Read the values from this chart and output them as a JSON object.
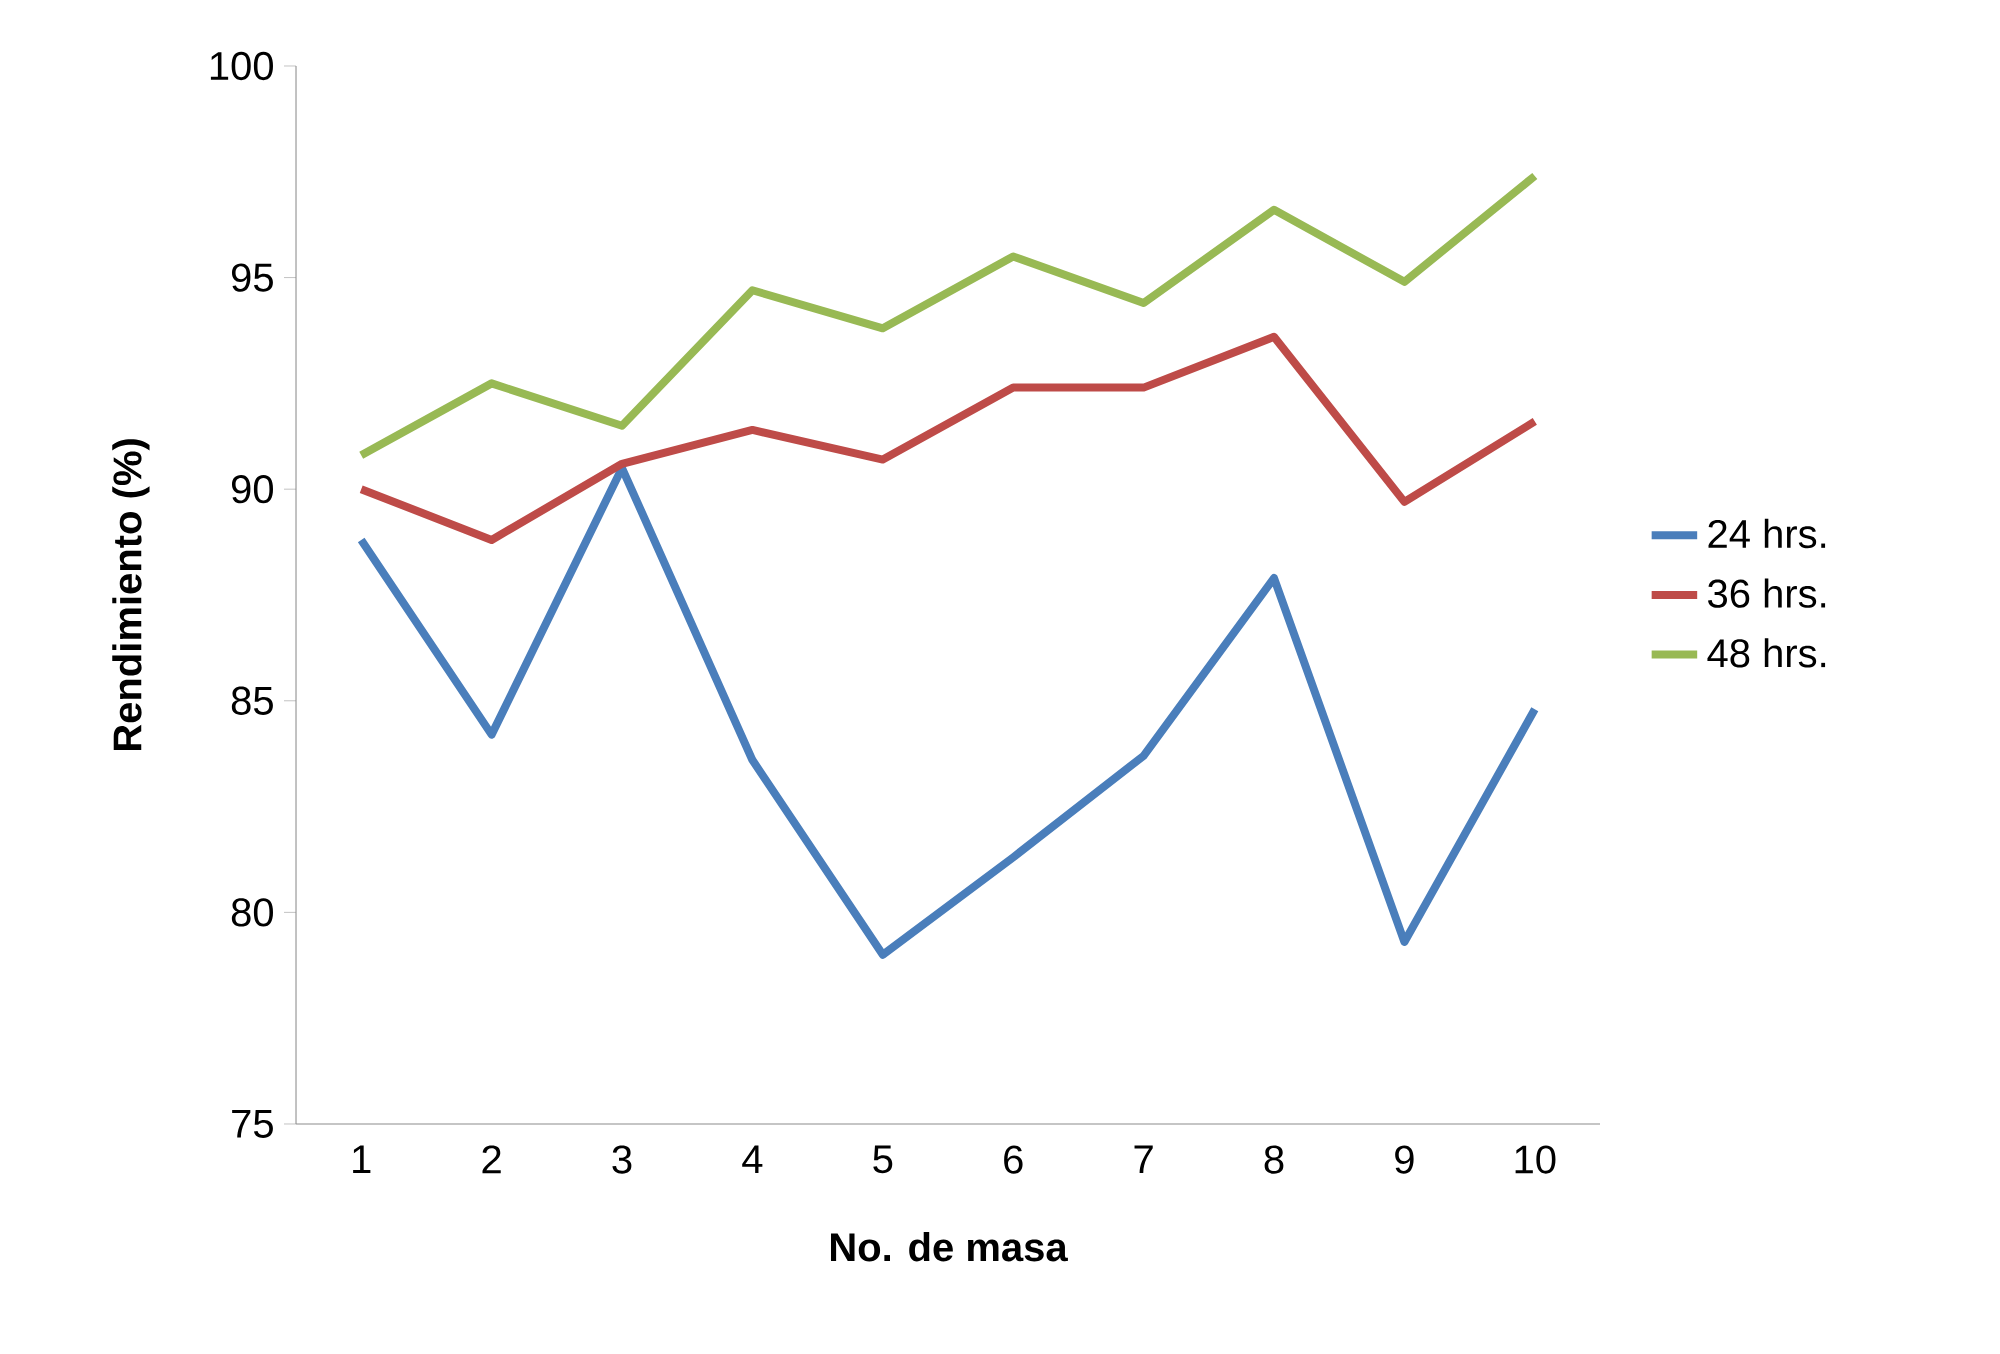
{
  "chart_data": {
    "type": "line",
    "xlabel": "No. de masa",
    "ylabel": "Rendimiento (%)",
    "categories": [
      "1",
      "2",
      "3",
      "4",
      "5",
      "6",
      "7",
      "8",
      "9",
      "10"
    ],
    "series": [
      {
        "name": "24 hrs.",
        "color": "#4a7ebb",
        "values": [
          88.8,
          84.2,
          90.5,
          83.6,
          79.0,
          81.3,
          83.7,
          87.9,
          79.3,
          84.8
        ]
      },
      {
        "name": "36 hrs.",
        "color": "#be4b48",
        "values": [
          90.0,
          88.8,
          90.6,
          91.4,
          90.7,
          92.4,
          92.4,
          93.6,
          89.7,
          91.6
        ]
      },
      {
        "name": "48 hrs.",
        "color": "#98b954",
        "values": [
          90.8,
          92.5,
          91.5,
          94.7,
          93.8,
          95.5,
          94.4,
          96.6,
          94.9,
          97.4
        ]
      }
    ],
    "ylim": [
      75,
      100
    ],
    "yticks": [
      75,
      80,
      85,
      90,
      95,
      100
    ],
    "grid": false,
    "legend": "right",
    "marker": "none",
    "line_style": "solid"
  }
}
